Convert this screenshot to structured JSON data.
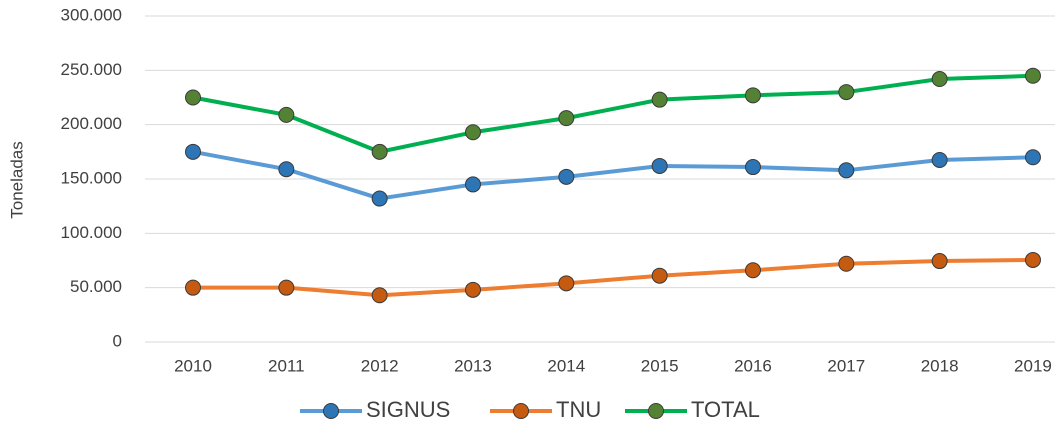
{
  "chart_data": {
    "type": "line",
    "y_label": "Toneladas",
    "categories": [
      "2010",
      "2011",
      "2012",
      "2013",
      "2014",
      "2015",
      "2016",
      "2017",
      "2018",
      "2019"
    ],
    "series": [
      {
        "name": "SIGNUS",
        "color": "#5b9bd5",
        "marker_color": "#2e75b6",
        "values": [
          175000,
          159000,
          132000,
          145000,
          152000,
          162000,
          161000,
          158000,
          167500,
          170000
        ]
      },
      {
        "name": "TNU",
        "color": "#ed7d31",
        "marker_color": "#c55a11",
        "values": [
          50000,
          50000,
          43000,
          48000,
          54000,
          61000,
          66000,
          72000,
          74500,
          75500
        ]
      },
      {
        "name": "TOTAL",
        "color": "#00b050",
        "marker_color": "#548235",
        "values": [
          225000,
          209000,
          175000,
          193000,
          206000,
          223000,
          227000,
          230000,
          242000,
          245000
        ]
      }
    ],
    "ylim": [
      0,
      300000
    ],
    "yticks": [
      0,
      {
        "value": 50000,
        "label": "50.000"
      },
      {
        "value": 100000,
        "label": "100.000"
      },
      {
        "value": 150000,
        "label": "150.000"
      },
      {
        "value": 200000,
        "label": "200.000"
      },
      {
        "value": 250000,
        "label": "250.000"
      },
      {
        "value": 300000,
        "label": "300.000"
      }
    ],
    "grid": true,
    "legend": "bottom"
  }
}
